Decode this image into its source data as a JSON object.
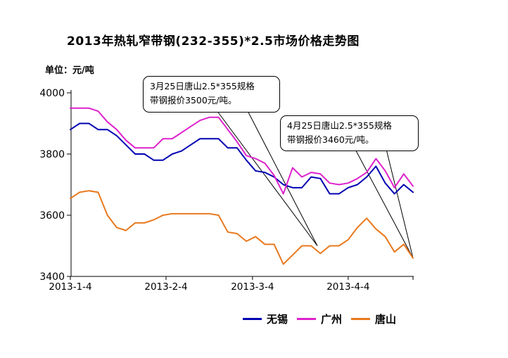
{
  "title": "2013年热轧窄带钢(232-355)*2.5市场价格走势图",
  "unit_label": "单位：元/吨",
  "callouts": [
    {
      "line1": "3月25日唐山2.5*355规格",
      "line2": "带钢报价3500元/吨。",
      "anchor_day": 80,
      "anchor_value": 3500
    },
    {
      "line1": "4月25日唐山2.5*355规格",
      "line2": "带钢报价3460元/吨。",
      "anchor_day": 111,
      "anchor_value": 3460
    }
  ],
  "legend": [
    {
      "label": "无锡",
      "color": "#0000B2"
    },
    {
      "label": "广州",
      "color": "#DD22CC"
    },
    {
      "label": "唐山",
      "color": "#E8791E"
    }
  ],
  "chart_data": {
    "type": "line",
    "title": "2013年热轧窄带钢(232-355)*2.5市场价格走势图",
    "ylabel": "元/吨",
    "ylim": [
      3400,
      4000
    ],
    "yticks": [
      4000,
      3800,
      3600,
      3400
    ],
    "xticks": [
      {
        "label": "2013-1-4",
        "day": 0
      },
      {
        "label": "2013-2-4",
        "day": 31
      },
      {
        "label": "2013-3-4",
        "day": 59
      },
      {
        "label": "2013-4-4",
        "day": 90
      }
    ],
    "total_days": 111,
    "grid": false,
    "legend_position": "bottom",
    "dates": [
      "1-4",
      "1-7",
      "1-10",
      "1-13",
      "1-16",
      "1-19",
      "1-22",
      "1-25",
      "1-28",
      "1-31",
      "2-3",
      "2-6",
      "2-9",
      "2-12",
      "2-15",
      "2-18",
      "2-21",
      "2-24",
      "2-27",
      "3-2",
      "3-5",
      "3-8",
      "3-11",
      "3-14",
      "3-17",
      "3-20",
      "3-23",
      "3-26",
      "3-29",
      "4-1",
      "4-4",
      "4-7",
      "4-10",
      "4-13",
      "4-16",
      "4-19",
      "4-22",
      "4-25"
    ],
    "day_offsets": [
      0,
      3,
      6,
      9,
      12,
      15,
      18,
      21,
      24,
      27,
      30,
      33,
      36,
      39,
      42,
      45,
      48,
      51,
      54,
      57,
      60,
      63,
      66,
      69,
      72,
      75,
      78,
      81,
      84,
      87,
      90,
      93,
      96,
      99,
      102,
      105,
      108,
      111
    ],
    "series": [
      {
        "name": "无锡",
        "color": "#0000B2",
        "values": [
          3880,
          3900,
          3900,
          3880,
          3880,
          3860,
          3830,
          3800,
          3800,
          3780,
          3780,
          3800,
          3810,
          3830,
          3850,
          3850,
          3850,
          3820,
          3820,
          3780,
          3745,
          3740,
          3725,
          3700,
          3690,
          3690,
          3725,
          3720,
          3670,
          3670,
          3690,
          3700,
          3725,
          3760,
          3705,
          3670,
          3700,
          3675
        ]
      },
      {
        "name": "广州",
        "color": "#DD22CC",
        "values": [
          3950,
          3950,
          3950,
          3940,
          3905,
          3880,
          3845,
          3820,
          3820,
          3820,
          3850,
          3850,
          3870,
          3890,
          3910,
          3920,
          3920,
          3880,
          3840,
          3795,
          3785,
          3770,
          3730,
          3670,
          3755,
          3725,
          3740,
          3735,
          3705,
          3700,
          3705,
          3720,
          3740,
          3785,
          3745,
          3690,
          3735,
          3695
        ]
      },
      {
        "name": "唐山",
        "color": "#E8791E",
        "values": [
          3655,
          3675,
          3680,
          3675,
          3600,
          3560,
          3550,
          3575,
          3575,
          3585,
          3600,
          3605,
          3605,
          3605,
          3605,
          3605,
          3600,
          3545,
          3540,
          3515,
          3530,
          3505,
          3505,
          3440,
          3470,
          3500,
          3500,
          3475,
          3500,
          3500,
          3520,
          3560,
          3590,
          3555,
          3530,
          3480,
          3505,
          3460
        ]
      }
    ]
  }
}
